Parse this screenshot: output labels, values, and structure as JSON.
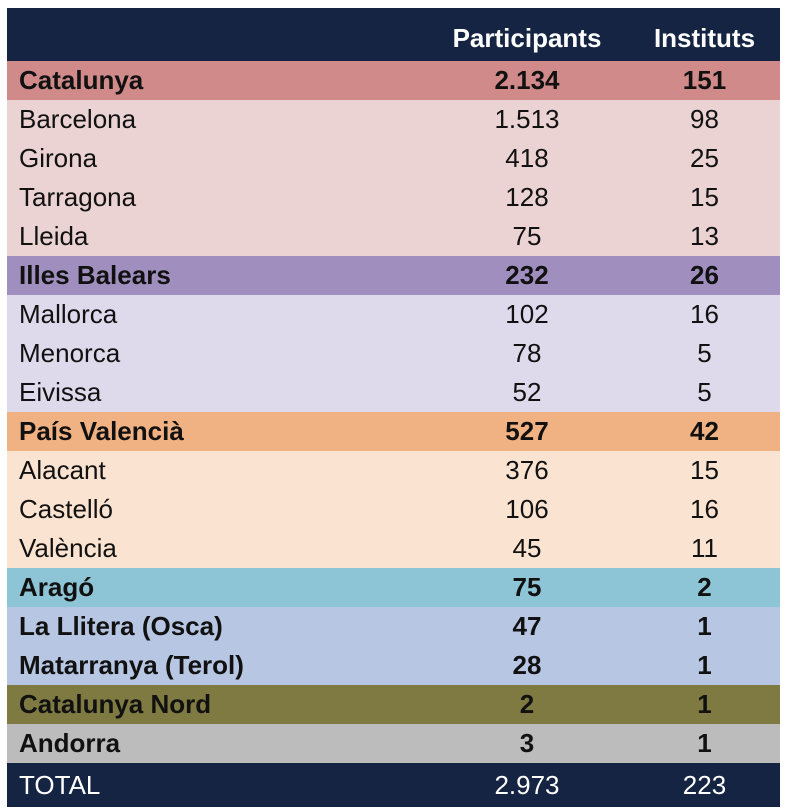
{
  "header": {
    "col_region": "",
    "col_participants": "Participants",
    "col_institutes": "Instituts"
  },
  "rows": [
    {
      "name": "Catalunya",
      "participants": "2.134",
      "institutes": "151",
      "bold": true,
      "bg": "#d08a8a"
    },
    {
      "name": "Barcelona",
      "participants": "1.513",
      "institutes": "98",
      "bold": false,
      "bg": "#ecd3d3"
    },
    {
      "name": "Girona",
      "participants": "418",
      "institutes": "25",
      "bold": false,
      "bg": "#ecd3d3"
    },
    {
      "name": "Tarragona",
      "participants": "128",
      "institutes": "15",
      "bold": false,
      "bg": "#ecd3d3"
    },
    {
      "name": "Lleida",
      "participants": "75",
      "institutes": "13",
      "bold": false,
      "bg": "#ecd3d3"
    },
    {
      "name": "Illes Balears",
      "participants": "232",
      "institutes": "26",
      "bold": true,
      "bg": "#a08fbe"
    },
    {
      "name": "Mallorca",
      "participants": "102",
      "institutes": "16",
      "bold": false,
      "bg": "#dfd9ec"
    },
    {
      "name": "Menorca",
      "participants": "78",
      "institutes": "5",
      "bold": false,
      "bg": "#dfd9ec"
    },
    {
      "name": "Eivissa",
      "participants": "52",
      "institutes": "5",
      "bold": false,
      "bg": "#dfd9ec"
    },
    {
      "name": "País Valencià",
      "participants": "527",
      "institutes": "42",
      "bold": true,
      "bg": "#f0b183"
    },
    {
      "name": "Alacant",
      "participants": "376",
      "institutes": "15",
      "bold": false,
      "bg": "#fbe3d1"
    },
    {
      "name": "Castelló",
      "participants": "106",
      "institutes": "16",
      "bold": false,
      "bg": "#fbe3d1"
    },
    {
      "name": "València",
      "participants": "45",
      "institutes": "11",
      "bold": false,
      "bg": "#fbe3d1"
    },
    {
      "name": "Aragó",
      "participants": "75",
      "institutes": "2",
      "bold": true,
      "bg": "#8ec5d6"
    },
    {
      "name": "La Llitera (Osca)",
      "participants": "47",
      "institutes": "1",
      "bold": true,
      "bg": "#b7c6e2"
    },
    {
      "name": "Matarranya (Terol)",
      "participants": "28",
      "institutes": "1",
      "bold": true,
      "bg": "#b7c6e2"
    },
    {
      "name": "Catalunya Nord",
      "participants": "2",
      "institutes": "1",
      "bold": true,
      "bg": "#7f7a41"
    },
    {
      "name": "Andorra",
      "participants": "3",
      "institutes": "1",
      "bold": true,
      "bg": "#bcbcbc"
    }
  ],
  "total": {
    "name": "TOTAL",
    "participants": "2.973",
    "institutes": "223"
  },
  "colors": {
    "header_bg": "#152443",
    "header_text": "#ffffff"
  }
}
